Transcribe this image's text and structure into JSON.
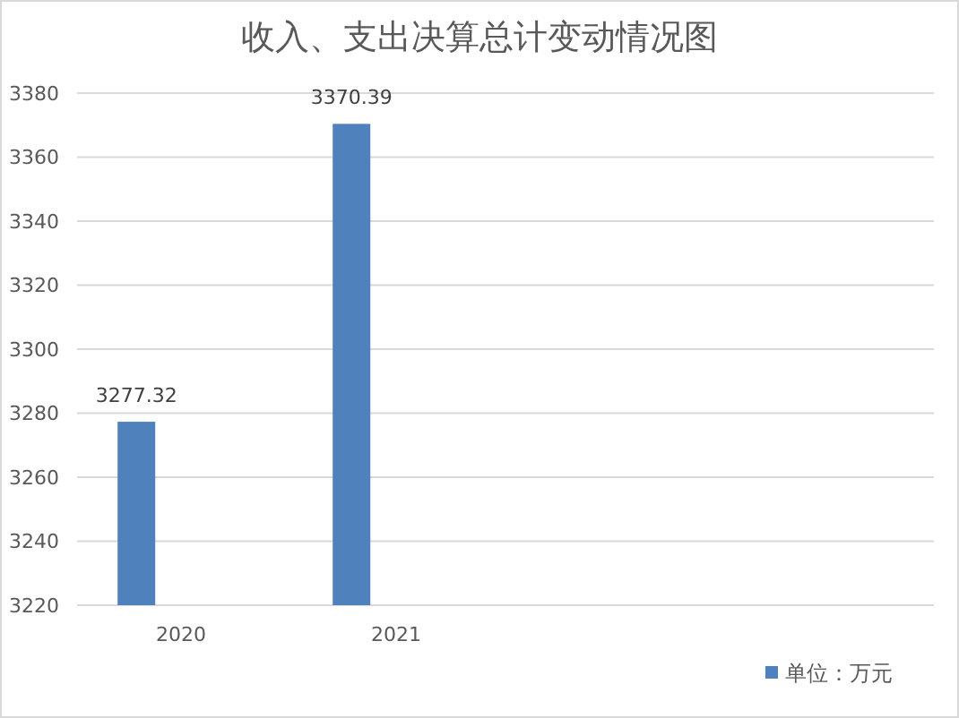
{
  "chart_data": {
    "type": "bar",
    "title": "收入、支出决算总计变动情况图",
    "categories": [
      "2020",
      "2021",
      null,
      null
    ],
    "series": [
      {
        "name": "单位：万元",
        "color": "#4f81bd",
        "values": [
          3277.32,
          3370.39,
          null,
          null
        ]
      }
    ],
    "ylim": [
      3220,
      3380
    ],
    "yticks": [
      3220,
      3240,
      3260,
      3280,
      3300,
      3320,
      3340,
      3360,
      3380
    ],
    "grid": "y",
    "legend": "bottom right",
    "data_labels": true
  }
}
